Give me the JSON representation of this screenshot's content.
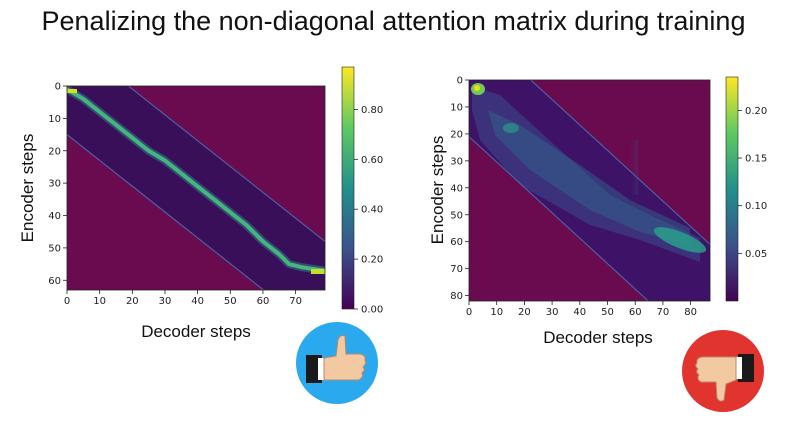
{
  "title": "Penalizing the non-diagonal attention matrix during training",
  "chart_data": [
    {
      "type": "heatmap",
      "name": "good-attention",
      "xlabel": "Decoder steps",
      "ylabel": "Encoder steps",
      "xlim": [
        0,
        79
      ],
      "ylim": [
        63,
        0
      ],
      "xticks": [
        0,
        10,
        20,
        30,
        40,
        50,
        60,
        70
      ],
      "yticks": [
        0,
        10,
        20,
        30,
        40,
        50,
        60
      ],
      "colorbar": {
        "min": 0.0,
        "max": 0.97,
        "ticks": [
          0.0,
          0.2,
          0.4,
          0.6,
          0.8
        ]
      },
      "band_offset": 15,
      "background_color": "#6a0b4f",
      "alignment_path": [
        [
          0,
          1
        ],
        [
          5,
          4
        ],
        [
          10,
          8
        ],
        [
          15,
          12
        ],
        [
          20,
          16
        ],
        [
          25,
          20
        ],
        [
          30,
          23
        ],
        [
          35,
          27
        ],
        [
          40,
          31
        ],
        [
          45,
          35
        ],
        [
          50,
          39
        ],
        [
          55,
          43
        ],
        [
          60,
          48
        ],
        [
          65,
          52
        ],
        [
          68,
          55
        ],
        [
          72,
          56
        ],
        [
          79,
          57
        ]
      ]
    },
    {
      "type": "heatmap",
      "name": "bad-attention",
      "xlabel": "Decoder steps",
      "ylabel": "Encoder steps",
      "xlim": [
        0,
        87
      ],
      "ylim": [
        82,
        0
      ],
      "xticks": [
        0,
        10,
        20,
        30,
        40,
        50,
        60,
        70,
        80
      ],
      "yticks": [
        0,
        10,
        20,
        30,
        40,
        50,
        60,
        70,
        80
      ],
      "colorbar": {
        "min": 0.0,
        "max": 0.235,
        "ticks": [
          0.05,
          0.1,
          0.15,
          0.2
        ]
      },
      "band_offset": 21,
      "background_color": "#6a0b4f"
    }
  ],
  "icons": {
    "like": "thumbs-up-icon",
    "dislike": "thumbs-down-icon"
  },
  "colors": {
    "like_badge": "#2aa9ee",
    "dislike_badge": "#e2342f"
  }
}
